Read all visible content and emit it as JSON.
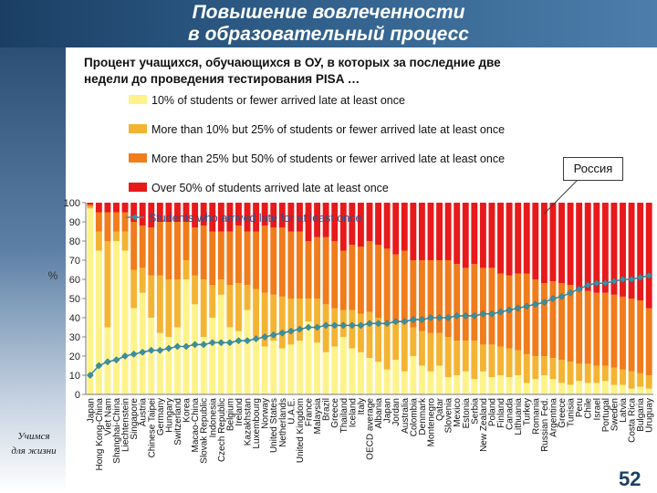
{
  "header": {
    "title_line1": "Повышение вовлеченности",
    "title_line2": "в образовательный процесс"
  },
  "subtitle_line1": "Процент учащихся, обучающихся в ОУ, в которых  за последние две",
  "subtitle_line2": "недели до проведения тестирования PISA …",
  "callout_label": "Россия",
  "page_number": "52",
  "motto_line1": "Учимся",
  "motto_line2": "для жизни",
  "chart_data": {
    "type": "bar",
    "stacked": true,
    "ylabel": "%",
    "ylim": [
      0,
      100
    ],
    "yticks": [
      0,
      10,
      20,
      30,
      40,
      50,
      60,
      70,
      80,
      90,
      100
    ],
    "categories": [
      "Japan",
      "Hong Kong-China",
      "Viet Nam",
      "Shanghai-China",
      "Liechtenstein",
      "Singapore",
      "Austria",
      "Chinese Taipei",
      "Germany",
      "Hungary",
      "Switzerland",
      "Korea",
      "Macao-China",
      "Slovak Republic",
      "Indonesia",
      "Czech Republic",
      "Belgium",
      "Ireland",
      "Kazakhstan",
      "Luxembourg",
      "Norway",
      "United States",
      "Netherlands",
      "U.A.E.",
      "United Kingdom",
      "France",
      "Malaysia",
      "Brazil",
      "Greece",
      "Thailand",
      "Iceland",
      "Italy",
      "OECD average",
      "Albania",
      "Japan",
      "Jordan",
      "Australia",
      "Colombia",
      "Denmark",
      "Montenegro",
      "Qatar",
      "Slovenia",
      "Mexico",
      "Estonia",
      "Serbia",
      "New Zealand",
      "Poland",
      "Finland",
      "Canada",
      "Lithuania",
      "Turkey",
      "Romania",
      "Russian Fed.",
      "Argentina",
      "Greece",
      "Tunisia",
      "Peru",
      "Chile",
      "Israel",
      "Portugal",
      "Sweden",
      "Latvia",
      "Costa Rica",
      "Bulgaria",
      "Uruguay"
    ],
    "series": [
      {
        "name": "10% of students or fewer arrived late at least once",
        "color": "#fef38a",
        "values": [
          97,
          75,
          35,
          80,
          75,
          45,
          53,
          40,
          32,
          30,
          35,
          60,
          47,
          30,
          40,
          52,
          35,
          33,
          44,
          30,
          25,
          28,
          24,
          26,
          28,
          38,
          27,
          22,
          25,
          30,
          24,
          22,
          19,
          17,
          13,
          18,
          12,
          20,
          15,
          12,
          15,
          9,
          10,
          12,
          8,
          12,
          9,
          10,
          9,
          10,
          6,
          8,
          10,
          8,
          6,
          5,
          7,
          6,
          6,
          7,
          5,
          5,
          3,
          4,
          3
        ]
      },
      {
        "name": "More than 10% but 25% of students or fewer arrived late at least once",
        "color": "#f4b433",
        "values": [
          1,
          10,
          45,
          5,
          10,
          20,
          13,
          22,
          30,
          30,
          25,
          10,
          15,
          30,
          17,
          8,
          22,
          25,
          13,
          25,
          28,
          24,
          27,
          24,
          22,
          12,
          23,
          25,
          20,
          14,
          20,
          20,
          24,
          23,
          25,
          19,
          25,
          15,
          18,
          20,
          17,
          21,
          18,
          16,
          20,
          14,
          17,
          15,
          15,
          13,
          15,
          12,
          10,
          11,
          12,
          12,
          9,
          10,
          9,
          8,
          9,
          8,
          9,
          7,
          7
        ]
      },
      {
        "name": "More than 25% but 50% of students or fewer arrived late at least once",
        "color": "#f07c1c",
        "values": [
          1,
          10,
          15,
          10,
          10,
          25,
          22,
          25,
          28,
          30,
          30,
          20,
          25,
          28,
          28,
          25,
          28,
          30,
          28,
          30,
          35,
          35,
          36,
          35,
          35,
          30,
          32,
          35,
          35,
          31,
          34,
          35,
          37,
          38,
          38,
          36,
          38,
          35,
          37,
          38,
          38,
          40,
          40,
          38,
          40,
          40,
          40,
          38,
          38,
          40,
          42,
          40,
          38,
          40,
          40,
          40,
          38,
          38,
          38,
          38,
          38,
          38,
          38,
          38,
          35
        ]
      },
      {
        "name": "Over 50% of students arrived late at least once",
        "color": "#e8191b",
        "values": [
          1,
          5,
          5,
          5,
          5,
          10,
          12,
          13,
          10,
          10,
          10,
          10,
          13,
          12,
          15,
          15,
          15,
          12,
          15,
          15,
          12,
          13,
          13,
          15,
          15,
          20,
          18,
          18,
          20,
          25,
          22,
          23,
          20,
          22,
          24,
          27,
          25,
          30,
          30,
          30,
          30,
          30,
          32,
          34,
          32,
          34,
          34,
          37,
          38,
          37,
          37,
          40,
          42,
          41,
          42,
          43,
          46,
          46,
          47,
          47,
          48,
          49,
          50,
          51,
          55
        ]
      }
    ],
    "line_series": {
      "name": "Students who arrived late for at least once",
      "color": "#3a8fa0",
      "values": [
        10,
        15,
        17,
        18,
        20,
        21,
        22,
        23,
        23,
        24,
        25,
        25,
        26,
        26,
        27,
        27,
        27,
        28,
        28,
        29,
        30,
        31,
        32,
        33,
        34,
        35,
        35,
        36,
        36,
        36,
        36,
        36,
        37,
        37,
        37,
        38,
        38,
        39,
        39,
        40,
        40,
        40,
        41,
        41,
        41,
        42,
        42,
        43,
        44,
        45,
        46,
        47,
        48,
        50,
        51,
        53,
        55,
        57,
        58,
        58,
        59,
        60,
        60,
        61,
        62
      ]
    },
    "russia_index": 52
  }
}
